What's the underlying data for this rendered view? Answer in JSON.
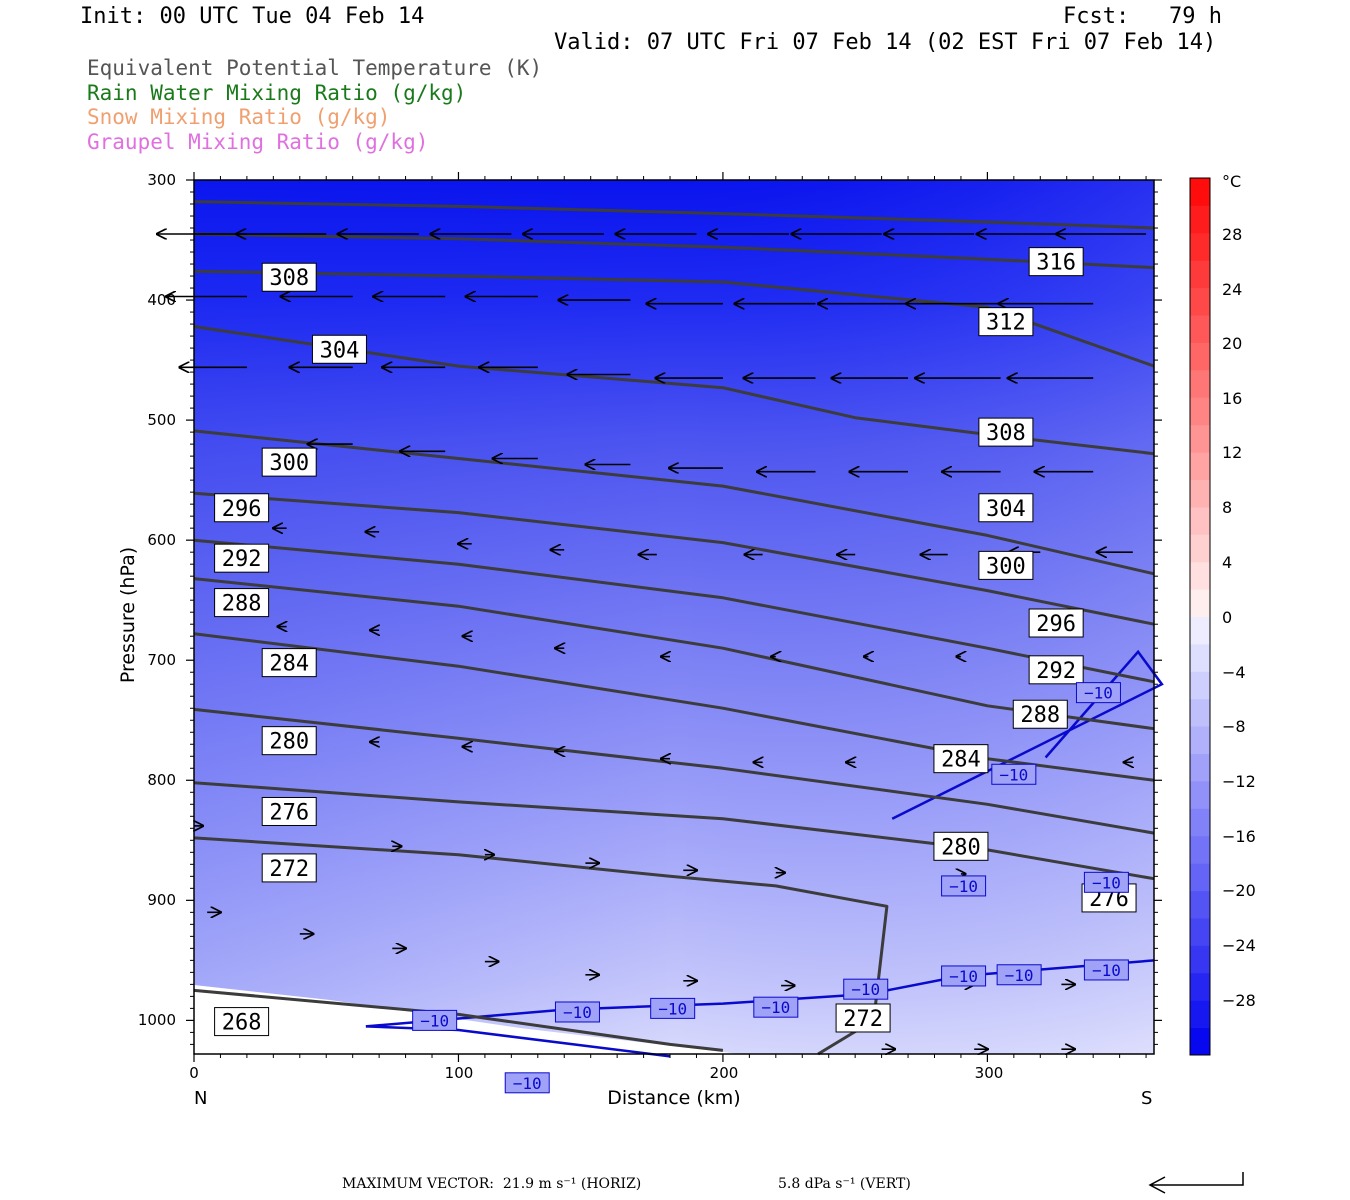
{
  "header": {
    "init": "Init: 00 UTC Tue 04 Feb 14",
    "fcst": "Fcst:   79 h",
    "valid": "Valid: 07 UTC Fri 07 Feb 14 (02 EST Fri 07 Feb 14)"
  },
  "legend": [
    {
      "text": "Equivalent Potential Temperature (K)",
      "color": "#555555"
    },
    {
      "text": "Rain Water Mixing Ratio (g/kg)",
      "color": "#1a7a1a"
    },
    {
      "text": "Snow Mixing Ratio (g/kg)",
      "color": "#f0a070"
    },
    {
      "text": "Graupel Mixing Ratio (g/kg)",
      "color": "#e070e0"
    }
  ],
  "footer": {
    "max_vector": "MAXIMUM VECTOR:  21.9 m s⁻¹ (HORIZ)",
    "vert": "5.8 dPa s⁻¹ (VERT)"
  },
  "chart_data": {
    "type": "contour",
    "xlabel": "Distance (km)",
    "ylabel": "Pressure (hPa)",
    "xlim": [
      0,
      363
    ],
    "ylim": [
      1028,
      300
    ],
    "y_log": false,
    "x_ticks": [
      "0",
      "100",
      "200",
      "300"
    ],
    "x_tick_values": [
      0,
      100,
      200,
      300
    ],
    "y_ticks": [
      "300",
      "400",
      "500",
      "600",
      "700",
      "800",
      "900",
      "1000"
    ],
    "y_tick_values": [
      300,
      400,
      500,
      600,
      700,
      800,
      900,
      1000
    ],
    "x_end_labels": {
      "left": "N",
      "right": "S"
    },
    "colorbar": {
      "unit": "°C",
      "labels": [
        "28",
        "24",
        "20",
        "16",
        "12",
        "8",
        "4",
        "0",
        "−4",
        "−8",
        "−12",
        "−16",
        "−20",
        "−24",
        "−28"
      ],
      "label_values": [
        28,
        24,
        20,
        16,
        12,
        8,
        4,
        0,
        -4,
        -8,
        -12,
        -16,
        -20,
        -24,
        -28
      ],
      "levels": [
        -32,
        -30,
        -28,
        -26,
        -24,
        -22,
        -20,
        -18,
        -16,
        -14,
        -12,
        -10,
        -8,
        -6,
        -4,
        -2,
        0,
        2,
        4,
        6,
        8,
        10,
        12,
        14,
        16,
        18,
        20,
        22,
        24,
        26,
        28,
        30,
        32
      ]
    },
    "theta_e_lines": [
      {
        "value": 316,
        "points": [
          [
            0,
            318
          ],
          [
            100,
            322
          ],
          [
            200,
            328
          ],
          [
            300,
            335
          ],
          [
            363,
            340
          ]
        ]
      },
      {
        "value": 312,
        "points": [
          [
            0,
            345
          ],
          [
            100,
            349
          ],
          [
            200,
            356
          ],
          [
            300,
            366
          ],
          [
            363,
            373
          ]
        ]
      },
      {
        "value": 308,
        "points": [
          [
            0,
            376
          ],
          [
            100,
            380
          ],
          [
            200,
            385
          ],
          [
            300,
            406
          ],
          [
            363,
            455
          ]
        ]
      },
      {
        "value": 304,
        "points": [
          [
            0,
            422
          ],
          [
            100,
            455
          ],
          [
            200,
            473
          ],
          [
            250,
            498
          ],
          [
            300,
            512
          ],
          [
            363,
            528
          ]
        ]
      },
      {
        "value": 300,
        "points": [
          [
            0,
            509
          ],
          [
            100,
            532
          ],
          [
            200,
            555
          ],
          [
            300,
            596
          ],
          [
            363,
            628
          ]
        ]
      },
      {
        "value": 296,
        "points": [
          [
            0,
            561
          ],
          [
            100,
            577
          ],
          [
            200,
            602
          ],
          [
            300,
            642
          ],
          [
            363,
            670
          ]
        ]
      },
      {
        "value": 292,
        "points": [
          [
            0,
            600
          ],
          [
            100,
            620
          ],
          [
            200,
            648
          ],
          [
            300,
            690
          ],
          [
            363,
            718
          ]
        ]
      },
      {
        "value": 288,
        "points": [
          [
            0,
            632
          ],
          [
            100,
            655
          ],
          [
            200,
            690
          ],
          [
            300,
            738
          ],
          [
            363,
            757
          ]
        ]
      },
      {
        "value": 284,
        "points": [
          [
            0,
            678
          ],
          [
            100,
            705
          ],
          [
            200,
            740
          ],
          [
            300,
            782
          ],
          [
            363,
            800
          ]
        ]
      },
      {
        "value": 280,
        "points": [
          [
            0,
            741
          ],
          [
            100,
            765
          ],
          [
            200,
            790
          ],
          [
            300,
            820
          ],
          [
            363,
            844
          ]
        ]
      },
      {
        "value": 276,
        "points": [
          [
            0,
            802
          ],
          [
            100,
            818
          ],
          [
            200,
            832
          ],
          [
            300,
            858
          ],
          [
            363,
            882
          ]
        ]
      },
      {
        "value": 272,
        "points": [
          [
            0,
            848
          ],
          [
            100,
            862
          ],
          [
            180,
            880
          ],
          [
            220,
            888
          ],
          [
            262,
            905
          ],
          [
            257,
            1000
          ],
          [
            236,
            1028
          ]
        ]
      },
      {
        "value": 268,
        "points": [
          [
            0,
            975
          ],
          [
            100,
            995
          ],
          [
            180,
            1020
          ],
          [
            200,
            1025
          ]
        ]
      }
    ],
    "theta_e_labels": [
      {
        "text": "316",
        "x": 326,
        "p": 368
      },
      {
        "text": "312",
        "x": 307,
        "p": 418
      },
      {
        "text": "308",
        "x": 36,
        "p": 381
      },
      {
        "text": "304",
        "x": 55,
        "p": 441
      },
      {
        "text": "308",
        "x": 307,
        "p": 510
      },
      {
        "text": "300",
        "x": 36,
        "p": 535
      },
      {
        "text": "304",
        "x": 307,
        "p": 573
      },
      {
        "text": "296",
        "x": 18,
        "p": 573
      },
      {
        "text": "292",
        "x": 18,
        "p": 615
      },
      {
        "text": "300",
        "x": 307,
        "p": 621
      },
      {
        "text": "288",
        "x": 18,
        "p": 652
      },
      {
        "text": "284",
        "x": 36,
        "p": 702
      },
      {
        "text": "296",
        "x": 326,
        "p": 669
      },
      {
        "text": "292",
        "x": 326,
        "p": 708
      },
      {
        "text": "288",
        "x": 320,
        "p": 745
      },
      {
        "text": "280",
        "x": 36,
        "p": 767
      },
      {
        "text": "284",
        "x": 290,
        "p": 782
      },
      {
        "text": "276",
        "x": 36,
        "p": 826
      },
      {
        "text": "280",
        "x": 290,
        "p": 855
      },
      {
        "text": "272",
        "x": 36,
        "p": 873
      },
      {
        "text": "276",
        "x": 346,
        "p": 898
      },
      {
        "text": "268",
        "x": 18,
        "p": 1001
      },
      {
        "text": "272",
        "x": 253,
        "p": 998
      }
    ],
    "isotherm_minus10": {
      "value": -10,
      "upper_segment": [
        [
          264,
          832
        ],
        [
          366,
          720
        ],
        [
          357,
          693
        ],
        [
          322,
          781
        ]
      ],
      "main_segment": [
        [
          65,
          1005
        ],
        [
          140,
          991
        ],
        [
          200,
          986
        ],
        [
          255,
          978
        ],
        [
          290,
          963
        ],
        [
          363,
          950
        ]
      ],
      "lower_segment": [
        [
          65,
          1005
        ],
        [
          100,
          1008
        ],
        [
          180,
          1030
        ]
      ],
      "labels": [
        {
          "text": "−10",
          "x": 342,
          "p": 727
        },
        {
          "text": "−10",
          "x": 310,
          "p": 795
        },
        {
          "text": "−10",
          "x": 291,
          "p": 888
        },
        {
          "text": "−10",
          "x": 345,
          "p": 885
        },
        {
          "text": "−10",
          "x": 91,
          "p": 1000
        },
        {
          "text": "−10",
          "x": 145,
          "p": 993
        },
        {
          "text": "−10",
          "x": 181,
          "p": 990
        },
        {
          "text": "−10",
          "x": 220,
          "p": 989
        },
        {
          "text": "−10",
          "x": 254,
          "p": 974
        },
        {
          "text": "−10",
          "x": 291,
          "p": 963
        },
        {
          "text": "−10",
          "x": 312,
          "p": 962
        },
        {
          "text": "−10",
          "x": 345,
          "p": 958
        },
        {
          "text": "−10",
          "x": 126,
          "p": 1052
        }
      ]
    },
    "wind_vectors": [
      {
        "x": 20,
        "p": 345,
        "u": -20,
        "v": 0
      },
      {
        "x": 50,
        "p": 345,
        "u": -20,
        "v": 0
      },
      {
        "x": 85,
        "p": 345,
        "u": -18,
        "v": 0
      },
      {
        "x": 120,
        "p": 345,
        "u": -18,
        "v": 0
      },
      {
        "x": 155,
        "p": 345,
        "u": -18,
        "v": 0
      },
      {
        "x": 190,
        "p": 345,
        "u": -18,
        "v": 0
      },
      {
        "x": 225,
        "p": 345,
        "u": -18,
        "v": 0
      },
      {
        "x": 260,
        "p": 345,
        "u": -20,
        "v": 0
      },
      {
        "x": 295,
        "p": 345,
        "u": -20,
        "v": 0
      },
      {
        "x": 330,
        "p": 345,
        "u": -20,
        "v": 0
      },
      {
        "x": 360,
        "p": 345,
        "u": -20,
        "v": 0
      },
      {
        "x": 20,
        "p": 397,
        "u": -18,
        "v": 0
      },
      {
        "x": 60,
        "p": 397,
        "u": -16,
        "v": 0
      },
      {
        "x": 95,
        "p": 397,
        "u": -16,
        "v": 0
      },
      {
        "x": 130,
        "p": 397,
        "u": -16,
        "v": 0
      },
      {
        "x": 165,
        "p": 400,
        "u": -16,
        "v": 0
      },
      {
        "x": 200,
        "p": 403,
        "u": -17,
        "v": 0
      },
      {
        "x": 235,
        "p": 403,
        "u": -18,
        "v": 0
      },
      {
        "x": 270,
        "p": 403,
        "u": -20,
        "v": 0
      },
      {
        "x": 305,
        "p": 403,
        "u": -21,
        "v": 0
      },
      {
        "x": 340,
        "p": 403,
        "u": -21,
        "v": 0
      },
      {
        "x": 20,
        "p": 456,
        "u": -15,
        "v": 0
      },
      {
        "x": 60,
        "p": 456,
        "u": -14,
        "v": 0
      },
      {
        "x": 95,
        "p": 456,
        "u": -14,
        "v": 0
      },
      {
        "x": 130,
        "p": 456,
        "u": -13,
        "v": 0
      },
      {
        "x": 165,
        "p": 462,
        "u": -14,
        "v": 0
      },
      {
        "x": 200,
        "p": 465,
        "u": -15,
        "v": 0
      },
      {
        "x": 235,
        "p": 465,
        "u": -16,
        "v": 0
      },
      {
        "x": 270,
        "p": 465,
        "u": -17,
        "v": 0
      },
      {
        "x": 305,
        "p": 465,
        "u": -19,
        "v": 0
      },
      {
        "x": 340,
        "p": 465,
        "u": -19,
        "v": 0
      },
      {
        "x": 60,
        "p": 520,
        "u": -10,
        "v": 0
      },
      {
        "x": 95,
        "p": 526,
        "u": -10,
        "v": 0
      },
      {
        "x": 130,
        "p": 532,
        "u": -10,
        "v": 0
      },
      {
        "x": 165,
        "p": 537,
        "u": -10,
        "v": 0
      },
      {
        "x": 200,
        "p": 540,
        "u": -12,
        "v": 0
      },
      {
        "x": 235,
        "p": 543,
        "u": -13,
        "v": 0
      },
      {
        "x": 270,
        "p": 543,
        "u": -13,
        "v": 0
      },
      {
        "x": 305,
        "p": 543,
        "u": -13,
        "v": 0
      },
      {
        "x": 340,
        "p": 543,
        "u": -13,
        "v": 0
      },
      {
        "x": 35,
        "p": 590,
        "u": -3,
        "v": 0
      },
      {
        "x": 70,
        "p": 593,
        "u": -3,
        "v": 0
      },
      {
        "x": 105,
        "p": 603,
        "u": -3,
        "v": 0
      },
      {
        "x": 140,
        "p": 608,
        "u": -3,
        "v": 0
      },
      {
        "x": 175,
        "p": 612,
        "u": -4,
        "v": 0
      },
      {
        "x": 215,
        "p": 612,
        "u": -4,
        "v": 0
      },
      {
        "x": 250,
        "p": 612,
        "u": -4,
        "v": 0
      },
      {
        "x": 285,
        "p": 612,
        "u": -6,
        "v": 0
      },
      {
        "x": 320,
        "p": 610,
        "u": -7,
        "v": 0
      },
      {
        "x": 355,
        "p": 610,
        "u": -8,
        "v": 0
      },
      {
        "x": 35,
        "p": 672,
        "u": -2,
        "v": 0
      },
      {
        "x": 70,
        "p": 675,
        "u": -2,
        "v": 0
      },
      {
        "x": 105,
        "p": 680,
        "u": -2,
        "v": 0
      },
      {
        "x": 140,
        "p": 690,
        "u": -2,
        "v": 0
      },
      {
        "x": 180,
        "p": 697,
        "u": -2,
        "v": 0
      },
      {
        "x": 220,
        "p": 697,
        "u": -1,
        "v": 0
      },
      {
        "x": 255,
        "p": 697,
        "u": -1,
        "v": 0
      },
      {
        "x": 290,
        "p": 697,
        "u": -1,
        "v": 0
      },
      {
        "x": 35,
        "p": 763,
        "u": -2,
        "v": 0
      },
      {
        "x": 70,
        "p": 768,
        "u": -2,
        "v": 0
      },
      {
        "x": 105,
        "p": 772,
        "u": -2,
        "v": 0
      },
      {
        "x": 140,
        "p": 776,
        "u": -2,
        "v": 0
      },
      {
        "x": 180,
        "p": 782,
        "u": -2,
        "v": 0
      },
      {
        "x": 215,
        "p": 785,
        "u": -2,
        "v": 0
      },
      {
        "x": 250,
        "p": 785,
        "u": -2,
        "v": 0
      },
      {
        "x": 290,
        "p": 785,
        "u": -2,
        "v": 0
      },
      {
        "x": 355,
        "p": 785,
        "u": -2,
        "v": 0
      },
      {
        "x": 0,
        "p": 838,
        "u": 2,
        "v": 0
      },
      {
        "x": 75,
        "p": 855,
        "u": 2,
        "v": 0
      },
      {
        "x": 110,
        "p": 862,
        "u": 2,
        "v": 0
      },
      {
        "x": 148,
        "p": 869,
        "u": 3,
        "v": 0
      },
      {
        "x": 185,
        "p": 875,
        "u": 3,
        "v": 0
      },
      {
        "x": 220,
        "p": 877,
        "u": 2,
        "v": 0
      },
      {
        "x": 290,
        "p": 878,
        "u": 1,
        "v": 0
      },
      {
        "x": 5,
        "p": 910,
        "u": 3,
        "v": 0
      },
      {
        "x": 40,
        "p": 928,
        "u": 3,
        "v": 0
      },
      {
        "x": 75,
        "p": 940,
        "u": 3,
        "v": 0
      },
      {
        "x": 110,
        "p": 951,
        "u": 3,
        "v": 0
      },
      {
        "x": 148,
        "p": 962,
        "u": 3,
        "v": 0
      },
      {
        "x": 185,
        "p": 967,
        "u": 3,
        "v": 0
      },
      {
        "x": 222,
        "p": 971,
        "u": 3,
        "v": 0
      },
      {
        "x": 290,
        "p": 970,
        "u": 3,
        "v": 0
      },
      {
        "x": 328,
        "p": 970,
        "u": 3,
        "v": 0
      },
      {
        "x": 260,
        "p": 1024,
        "u": 3,
        "v": 0
      },
      {
        "x": 295,
        "p": 1024,
        "u": 3,
        "v": 0
      },
      {
        "x": 328,
        "p": 1024,
        "u": 3,
        "v": 0
      }
    ]
  }
}
